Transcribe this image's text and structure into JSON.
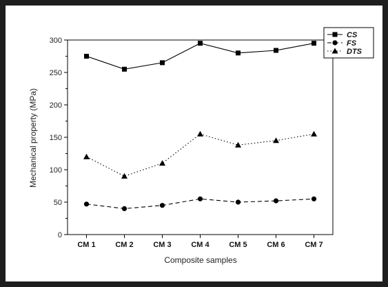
{
  "chart_data": {
    "type": "line",
    "categories": [
      "CM 1",
      "CM 2",
      "CM 3",
      "CM 4",
      "CM 5",
      "CM 6",
      "CM 7"
    ],
    "series": [
      {
        "name": "CS",
        "values": [
          275,
          255,
          265,
          295,
          280,
          284,
          295
        ],
        "marker": "square",
        "dash": "solid",
        "color": "#000000"
      },
      {
        "name": "FS",
        "values": [
          47,
          40,
          45,
          55,
          50,
          52,
          55
        ],
        "marker": "circle",
        "dash": "dashed",
        "color": "#000000"
      },
      {
        "name": "DTS",
        "values": [
          120,
          90,
          110,
          155,
          138,
          145,
          155
        ],
        "marker": "triangle",
        "dash": "dotted",
        "color": "#000000"
      }
    ],
    "xlabel": "Composite samples",
    "ylabel": "Mechanical property (MPa)",
    "ylim": [
      0,
      300
    ],
    "yticks": [
      "0",
      "50",
      "100",
      "150",
      "200",
      "250",
      "300"
    ],
    "grid": false,
    "legend_position": "top-right"
  }
}
